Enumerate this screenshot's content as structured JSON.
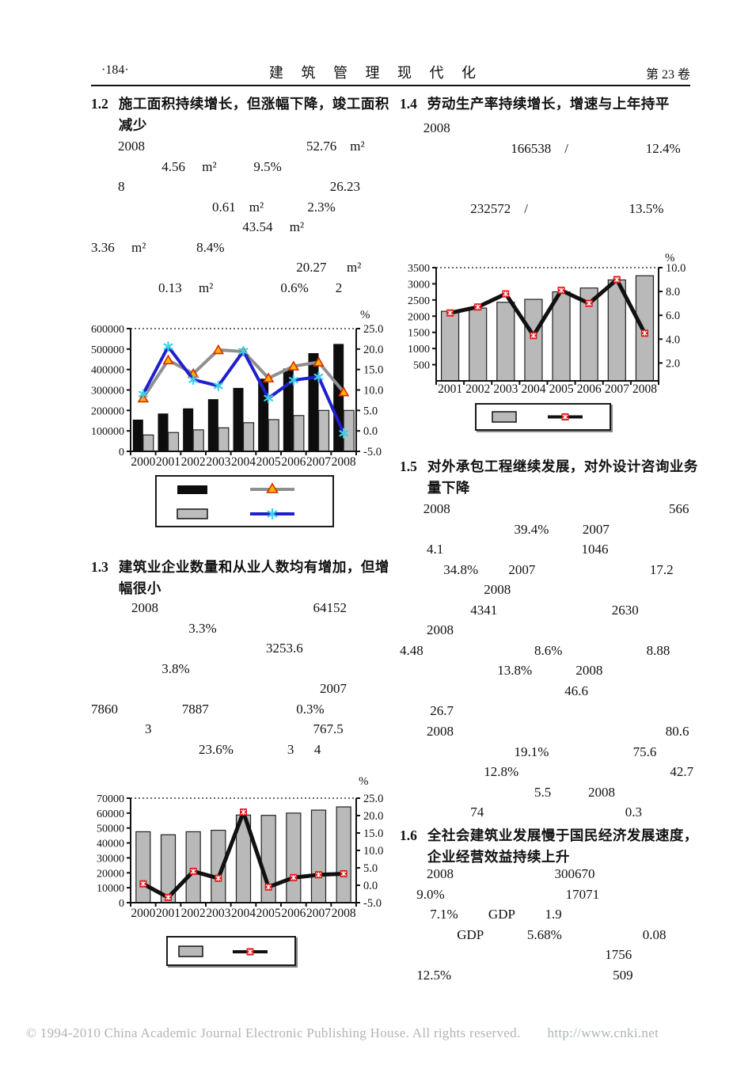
{
  "header": {
    "page_number": "·184·",
    "journal_title": "建 筑 管 理 现 代 化",
    "volume": "第 23 卷"
  },
  "footer": {
    "copyright": "© 1994-2010 China Academic Journal Electronic Publishing House. All rights reserved.",
    "url": "http://www.cnki.net"
  },
  "sections": {
    "s12": {
      "number": "1.2",
      "title_line1": "施工面积持续增长，但涨幅下降，竣工面积",
      "title_line2": "减少",
      "lines": [
        "        2008                                                52.76    m²",
        "                     4.56     m²           9.5%",
        "        8                                                             26.23",
        "                                    0.61    m²             2.3%",
        "                                             43.54     m²",
        "3.36     m²               8.4%",
        "                                                             20.27      m²",
        "                    0.13     m²                    0.6%        2"
      ]
    },
    "s13": {
      "number": "1.3",
      "title_line1": "建筑业企业数量和从业人数均有增加，但增",
      "title_line2": "幅很小",
      "lines": [
        "            2008                                              64152",
        "                             3.3%",
        "                                                    3253.6",
        "                     3.8%",
        "                                                                    2007",
        "7860                   7887                          0.3%",
        "                3                                                767.5",
        "                                23.6%                3      4"
      ]
    },
    "s14": {
      "number": "1.4",
      "title": "劳动生产率持续增长，增速与上年持平",
      "lines": [
        "       2008",
        "                                 166538    /                       12.4%",
        "",
        "",
        "                     232572    /                              13.5%"
      ]
    },
    "s15": {
      "number": "1.5",
      "title_line1": "对外承包工程继续发展，对外设计咨询业务",
      "title_line2": "量下降",
      "lines": [
        "       2008                                                                 566",
        "                                  39.4%          2007",
        "        4.1                                         1046",
        "             34.8%         2007                                  17.2",
        "                         2008",
        "                     4341                                  2630",
        "        2008",
        "4.48                                 8.6%                         8.88",
        "                             13.8%             2008",
        "                                                 46.6",
        "         26.7",
        "        2008                                                               80.6",
        "                                  19.1%                         75.6",
        "                         12.8%                                             42.7",
        "                                        5.5           2008",
        "                     74                                          0.3"
      ]
    },
    "s16": {
      "number": "1.6",
      "title_line1": "全社会建筑业发展慢于国民经济发展速度，",
      "title_line2": "企业经营效益持续上升",
      "lines": [
        "        2008                              300670",
        "     9.0%                                    17071",
        "         7.1%         GDP         1.9",
        "                 GDP             5.68%                        0.08",
        "                                                             1756",
        "     12.5%                                                509"
      ]
    }
  },
  "chart_data": [
    {
      "type": "bar",
      "description": "Construction area (black bars) and completed area (gray bars) with growth-rate lines, 2000-2008",
      "categories": [
        "2000",
        "2001",
        "2002",
        "2003",
        "2004",
        "2005",
        "2006",
        "2007",
        "2008"
      ],
      "series": [
        {
          "name": "construction-area-bars",
          "type": "bar",
          "color": "#0d0d0d",
          "stroke": "none",
          "axis": "left",
          "values": [
            155000,
            185000,
            210000,
            255000,
            310000,
            355000,
            405000,
            480000,
            525000
          ]
        },
        {
          "name": "completed-area-bars",
          "type": "bar",
          "color": "#bcbcbc",
          "stroke": "#222",
          "axis": "left",
          "values": [
            80000,
            92000,
            105000,
            115000,
            140000,
            155000,
            175000,
            200000,
            200000
          ]
        },
        {
          "name": "construction-growth-line",
          "type": "line",
          "color": "#8f8f8f",
          "marker": "triangle",
          "axis": "right",
          "values": [
            8.0,
            17.3,
            14.0,
            19.8,
            19.4,
            12.9,
            15.8,
            16.8,
            9.5
          ]
        },
        {
          "name": "completed-growth-line",
          "type": "line",
          "color": "#1f1fd0",
          "marker": "asterisk",
          "axis": "right",
          "values": [
            9.0,
            20.6,
            12.5,
            11.0,
            19.5,
            8.0,
            12.4,
            13.2,
            -0.6
          ]
        }
      ],
      "left_axis": {
        "min": 0,
        "max": 600000,
        "tick_values": [
          0,
          100000,
          200000,
          300000,
          400000,
          500000,
          600000
        ],
        "tick_labels": [
          "0",
          "100000",
          "200000",
          "300000",
          "400000",
          "500000",
          "600000"
        ]
      },
      "right_axis": {
        "min": -5,
        "max": 25,
        "tick_values": [
          -5,
          0,
          5,
          10,
          15,
          20,
          25
        ],
        "tick_labels": [
          "-5.0",
          "0.0",
          "5.0",
          "10.0",
          "15.0",
          "20.0",
          "25.0"
        ],
        "unit": "%"
      },
      "grid": "dotted line at top only",
      "legend_position": "below, boxed, no visible text labels"
    },
    {
      "type": "bar",
      "description": "Number of construction enterprises (gray bars) and growth rate (black line, red markers), 2000-2008",
      "categories": [
        "2000",
        "2001",
        "2002",
        "2003",
        "2004",
        "2005",
        "2006",
        "2007",
        "2008"
      ],
      "series": [
        {
          "name": "enterprise-count-bars",
          "type": "bar",
          "color": "#b9b9b9",
          "stroke": "#222",
          "axis": "left",
          "values": [
            47500,
            45500,
            47500,
            48500,
            58700,
            58500,
            60000,
            62000,
            64152
          ]
        },
        {
          "name": "enterprise-growth-line",
          "type": "line",
          "color": "#111111",
          "marker": "redbox",
          "axis": "right",
          "values": [
            0.4,
            -3.5,
            4.0,
            2.0,
            21.0,
            -0.5,
            2.2,
            3.0,
            3.3
          ]
        }
      ],
      "left_axis": {
        "min": 0,
        "max": 70000,
        "tick_values": [
          0,
          10000,
          20000,
          30000,
          40000,
          50000,
          60000,
          70000
        ],
        "tick_labels": [
          "0",
          "10000",
          "20000",
          "30000",
          "40000",
          "50000",
          "60000",
          "70000"
        ]
      },
      "right_axis": {
        "min": -5,
        "max": 25,
        "tick_values": [
          -5,
          0,
          5,
          10,
          15,
          20,
          25
        ],
        "tick_labels": [
          "-5.0",
          "0.0",
          "5.0",
          "10.0",
          "15.0",
          "20.0",
          "25.0"
        ],
        "unit": "%"
      },
      "grid": "dotted line at top only",
      "legend_position": "below, boxed, no visible text labels"
    },
    {
      "type": "bar",
      "description": "Labor productivity (gray bars) and growth rate (black line, red markers), 2001-2008",
      "categories": [
        "2001",
        "2002",
        "2003",
        "2004",
        "2005",
        "2006",
        "2007",
        "2008"
      ],
      "series": [
        {
          "name": "productivity-bars",
          "type": "bar",
          "color": "#b9b9b9",
          "stroke": "#222",
          "axis": "left",
          "values": [
            2150,
            2250,
            2430,
            2520,
            2750,
            2870,
            3120,
            3250
          ]
        },
        {
          "name": "productivity-growth-line",
          "type": "line",
          "color": "#111111",
          "marker": "redbox",
          "axis": "right",
          "values": [
            6.2,
            6.7,
            7.8,
            4.3,
            8.1,
            7.0,
            9.0,
            4.5
          ]
        }
      ],
      "left_axis": {
        "min": 0,
        "max": 3500,
        "tick_values": [
          500,
          1000,
          1500,
          2000,
          2500,
          3000,
          3500
        ],
        "tick_labels": [
          "500",
          "1000",
          "1500",
          "2000",
          "2500",
          "3000",
          "3500"
        ]
      },
      "right_axis": {
        "min": 0.5,
        "max": 10,
        "tick_values": [
          2,
          4,
          6,
          8,
          10
        ],
        "tick_labels": [
          "2.0",
          "4.0",
          "6.0",
          "8.0",
          "10.0"
        ],
        "unit": "%"
      },
      "grid": "dotted line at top only",
      "legend_position": "below, boxed, no visible text labels"
    }
  ]
}
